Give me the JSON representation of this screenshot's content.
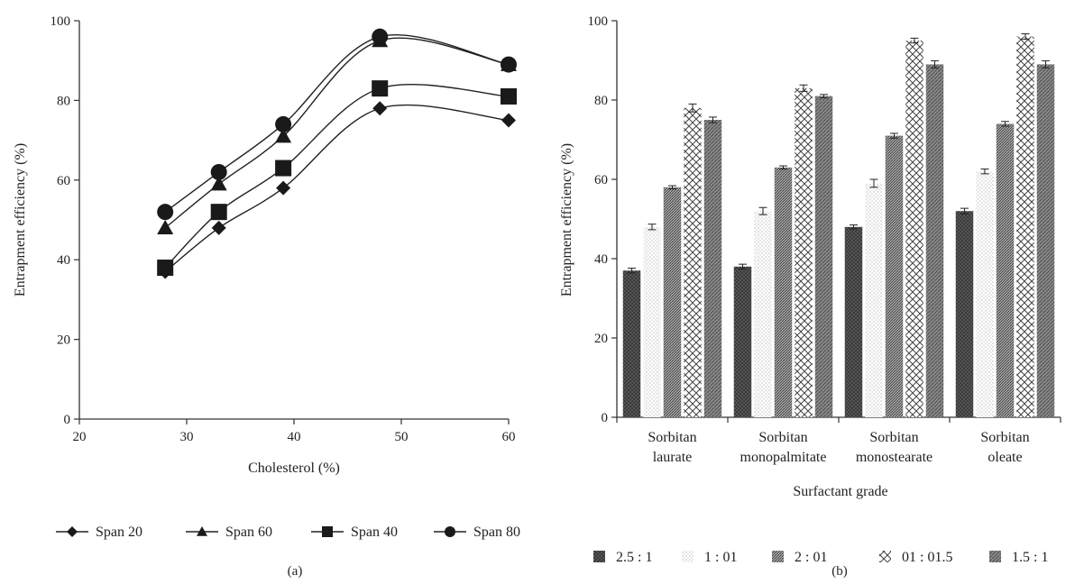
{
  "chart_data": [
    {
      "type": "line",
      "panel_label": "(a)",
      "xlabel": "Cholesterol (%)",
      "ylabel": "Entrapment efficiency (%)",
      "xlim": [
        20,
        60
      ],
      "ylim": [
        0,
        100
      ],
      "x_ticks": [
        20,
        30,
        40,
        50,
        60
      ],
      "y_ticks": [
        0,
        20,
        40,
        60,
        80,
        100
      ],
      "grid": false,
      "legend_position": "bottom",
      "x": [
        28,
        33,
        39,
        48,
        60
      ],
      "series": [
        {
          "name": "Span 20",
          "marker": "diamond",
          "values": [
            37,
            48,
            58,
            78,
            75
          ]
        },
        {
          "name": "Span 60",
          "marker": "triangle",
          "values": [
            48,
            59,
            71,
            95,
            89
          ]
        },
        {
          "name": "Span 40",
          "marker": "square",
          "values": [
            38,
            52,
            63,
            83,
            81
          ]
        },
        {
          "name": "Span 80",
          "marker": "circle",
          "values": [
            52,
            62,
            74,
            96,
            89
          ]
        }
      ]
    },
    {
      "type": "bar",
      "panel_label": "(b)",
      "xlabel": "Surfactant grade",
      "ylabel": "Entrapment efficiency (%)",
      "ylim": [
        0,
        100
      ],
      "y_ticks": [
        0,
        20,
        40,
        60,
        80,
        100
      ],
      "grid": false,
      "legend_position": "bottom",
      "categories": [
        [
          "Sorbitan",
          "laurate"
        ],
        [
          "Sorbitan",
          "monopalmitate"
        ],
        [
          "Sorbitan",
          "monostearate"
        ],
        [
          "Sorbitan",
          "oleate"
        ]
      ],
      "series": [
        {
          "name": "2.5 : 1",
          "pattern": "dense-dark",
          "values": [
            37,
            38,
            48,
            52
          ],
          "error": [
            0.6,
            0.6,
            0.5,
            0.7
          ]
        },
        {
          "name": "1 : 01",
          "pattern": "light-dots",
          "values": [
            48,
            52,
            59,
            62
          ],
          "error": [
            0.7,
            0.9,
            1.0,
            0.6
          ]
        },
        {
          "name": "2 : 01",
          "pattern": "fine-hatch",
          "values": [
            58,
            63,
            71,
            74
          ],
          "error": [
            0.4,
            0.4,
            0.6,
            0.6
          ]
        },
        {
          "name": "01 : 01.5",
          "pattern": "crosshatch",
          "values": [
            78,
            83,
            95,
            96
          ],
          "error": [
            1.0,
            0.8,
            0.6,
            0.7
          ]
        },
        {
          "name": "1.5 : 1",
          "pattern": "diag-grey",
          "values": [
            75,
            81,
            89,
            89
          ],
          "error": [
            0.7,
            0.4,
            0.9,
            0.9
          ]
        }
      ]
    }
  ]
}
